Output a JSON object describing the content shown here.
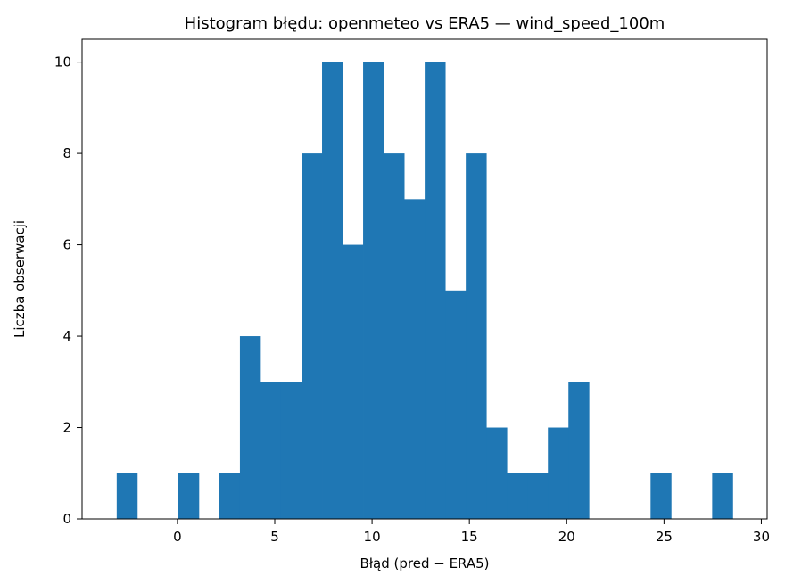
{
  "chart_data": {
    "type": "bar",
    "title": "Histogram błędu: openmeteo vs ERA5 — wind_speed_100m",
    "xlabel": "Błąd (pred − ERA5)",
    "ylabel": "Liczba obserwacji",
    "xlim": [
      -4.9,
      30.3
    ],
    "ylim": [
      0,
      10.5
    ],
    "xticks": [
      0,
      5,
      10,
      15,
      20,
      25,
      30
    ],
    "yticks": [
      0,
      2,
      4,
      6,
      8,
      10
    ],
    "grid": false,
    "bar_color": "#1f77b4",
    "bins": {
      "start": -3.12,
      "width": 1.055,
      "counts": [
        1,
        0,
        0,
        1,
        0,
        1,
        4,
        3,
        3,
        8,
        10,
        6,
        10,
        8,
        7,
        10,
        5,
        8,
        2,
        1,
        1,
        2,
        3,
        0,
        0,
        0,
        1,
        0,
        0,
        1
      ]
    }
  }
}
